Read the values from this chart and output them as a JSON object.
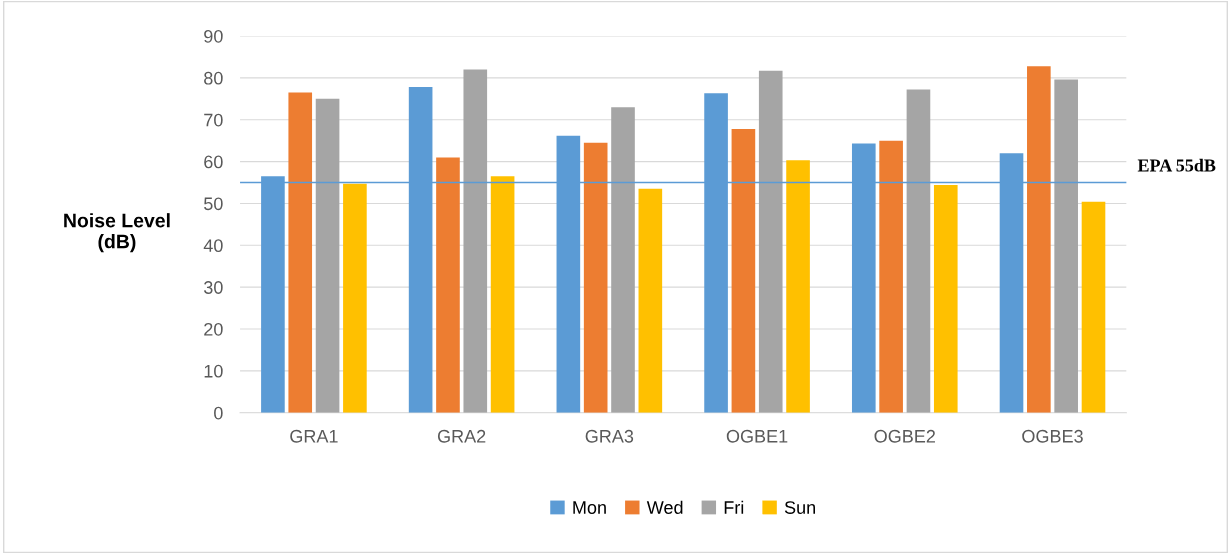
{
  "chart_data": {
    "type": "bar",
    "ylabel": "Noise Level\n(dB)",
    "categories": [
      "GRA1",
      "GRA2",
      "GRA3",
      "OGBE1",
      "OGBE2",
      "OGBE3"
    ],
    "series": [
      {
        "name": "Mon",
        "color": "#5b9bd5",
        "values": [
          56.5,
          77.8,
          66.2,
          76.3,
          64.3,
          62
        ]
      },
      {
        "name": "Wed",
        "color": "#ed7d31",
        "values": [
          76.5,
          61,
          64.5,
          67.8,
          65,
          82.8
        ]
      },
      {
        "name": "Fri",
        "color": "#a5a5a5",
        "values": [
          75,
          82,
          73,
          81.7,
          77.2,
          79.6
        ]
      },
      {
        "name": "Sun",
        "color": "#ffc000",
        "values": [
          54.7,
          56.5,
          53.5,
          60.3,
          54.4,
          50.4
        ]
      }
    ],
    "ylim": [
      0,
      90
    ],
    "yticks": [
      0,
      10,
      20,
      30,
      40,
      50,
      60,
      70,
      80,
      90
    ],
    "grid": "y",
    "legend": "bottom",
    "ref_lines": [
      {
        "axis": "y",
        "value": 55,
        "label": "EPA 55dB",
        "color": "#5b9bd5"
      }
    ]
  }
}
